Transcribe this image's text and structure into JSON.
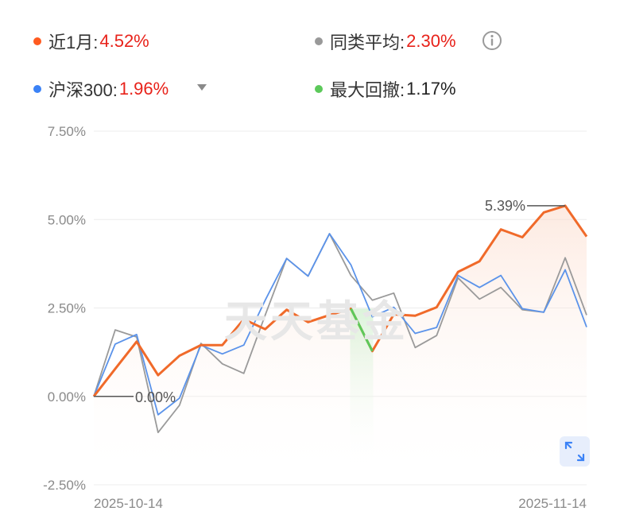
{
  "legend": {
    "fund": {
      "label": "近1月:",
      "value": "4.52%",
      "dot_color": "#ff5a1f",
      "value_color": "#e8221a"
    },
    "category_avg": {
      "label": "同类平均:",
      "value": "2.30%",
      "dot_color": "#999999",
      "value_color": "#e8221a"
    },
    "benchmark": {
      "label": "沪深300:",
      "value": "1.96%",
      "dot_color": "#3b82f6",
      "value_color": "#e8221a"
    },
    "max_drawdown": {
      "label": "最大回撤:",
      "value": "1.17%",
      "dot_color": "#5cc95a",
      "value_color": "#222222"
    }
  },
  "watermark": "天天基金",
  "chart_data": {
    "type": "line",
    "y_ticks": [
      "7.50%",
      "5.00%",
      "2.50%",
      "0.00%",
      "-2.50%"
    ],
    "ylim": [
      -2.5,
      7.5
    ],
    "x_start_label": "2025-10-14",
    "x_end_label": "2025-11-14",
    "annotations": {
      "max_label": "5.39%",
      "zero_label": "0.00%"
    },
    "series": [
      {
        "name": "近1月",
        "color": "#f06a2a",
        "values": [
          0.0,
          0.78,
          1.55,
          0.6,
          1.15,
          1.45,
          1.45,
          2.18,
          1.9,
          2.45,
          2.1,
          2.3,
          2.48,
          1.28,
          2.32,
          2.28,
          2.52,
          3.52,
          3.82,
          4.72,
          4.5,
          5.2,
          5.39,
          4.52
        ]
      },
      {
        "name": "同类平均",
        "color": "#9a9a9a",
        "values": [
          0.0,
          1.88,
          1.68,
          -1.02,
          -0.25,
          1.5,
          0.92,
          0.65,
          2.3,
          3.9,
          3.4,
          4.6,
          3.42,
          2.72,
          2.92,
          1.38,
          1.72,
          3.35,
          2.75,
          3.08,
          2.45,
          2.38,
          3.92,
          2.3
        ]
      },
      {
        "name": "沪深300",
        "color": "#5b93ea",
        "values": [
          0.0,
          1.48,
          1.75,
          -0.52,
          -0.05,
          1.45,
          1.2,
          1.45,
          2.72,
          3.9,
          3.4,
          4.6,
          3.72,
          2.25,
          2.52,
          1.78,
          1.95,
          3.42,
          3.08,
          3.42,
          2.48,
          2.38,
          3.58,
          1.96
        ]
      }
    ],
    "drawdown": {
      "from_index": 12,
      "to_index": 13,
      "value": "1.17%"
    }
  }
}
